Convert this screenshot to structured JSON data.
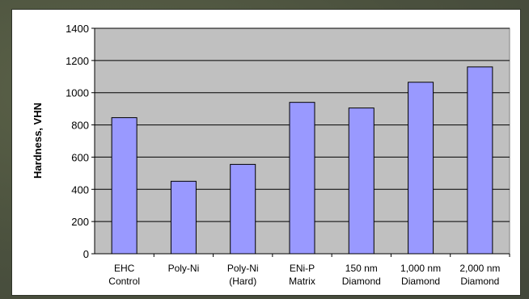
{
  "chart_data": {
    "type": "bar",
    "categories": [
      [
        "EHC",
        "Control"
      ],
      [
        "Poly-Ni",
        ""
      ],
      [
        "Poly-Ni",
        "(Hard)"
      ],
      [
        "ENi-P",
        "Matrix"
      ],
      [
        "150 nm",
        "Diamond"
      ],
      [
        "1,000 nm",
        "Diamond"
      ],
      [
        "2,000 nm",
        "Diamond"
      ]
    ],
    "values": [
      845,
      450,
      555,
      940,
      905,
      1065,
      1160
    ],
    "ylabel": "Hardness, VHN",
    "xlabel": "",
    "title": "",
    "ylim": [
      0,
      1400
    ],
    "yticks": [
      0,
      200,
      400,
      600,
      800,
      1000,
      1200,
      1400
    ],
    "grid": true,
    "legend": "none",
    "colors": {
      "bar_fill": "#9999ff",
      "bar_stroke": "#000000",
      "plot_bg": "#c0c0c0",
      "gridline": "#000000",
      "page_bg": "#4d5340"
    }
  }
}
